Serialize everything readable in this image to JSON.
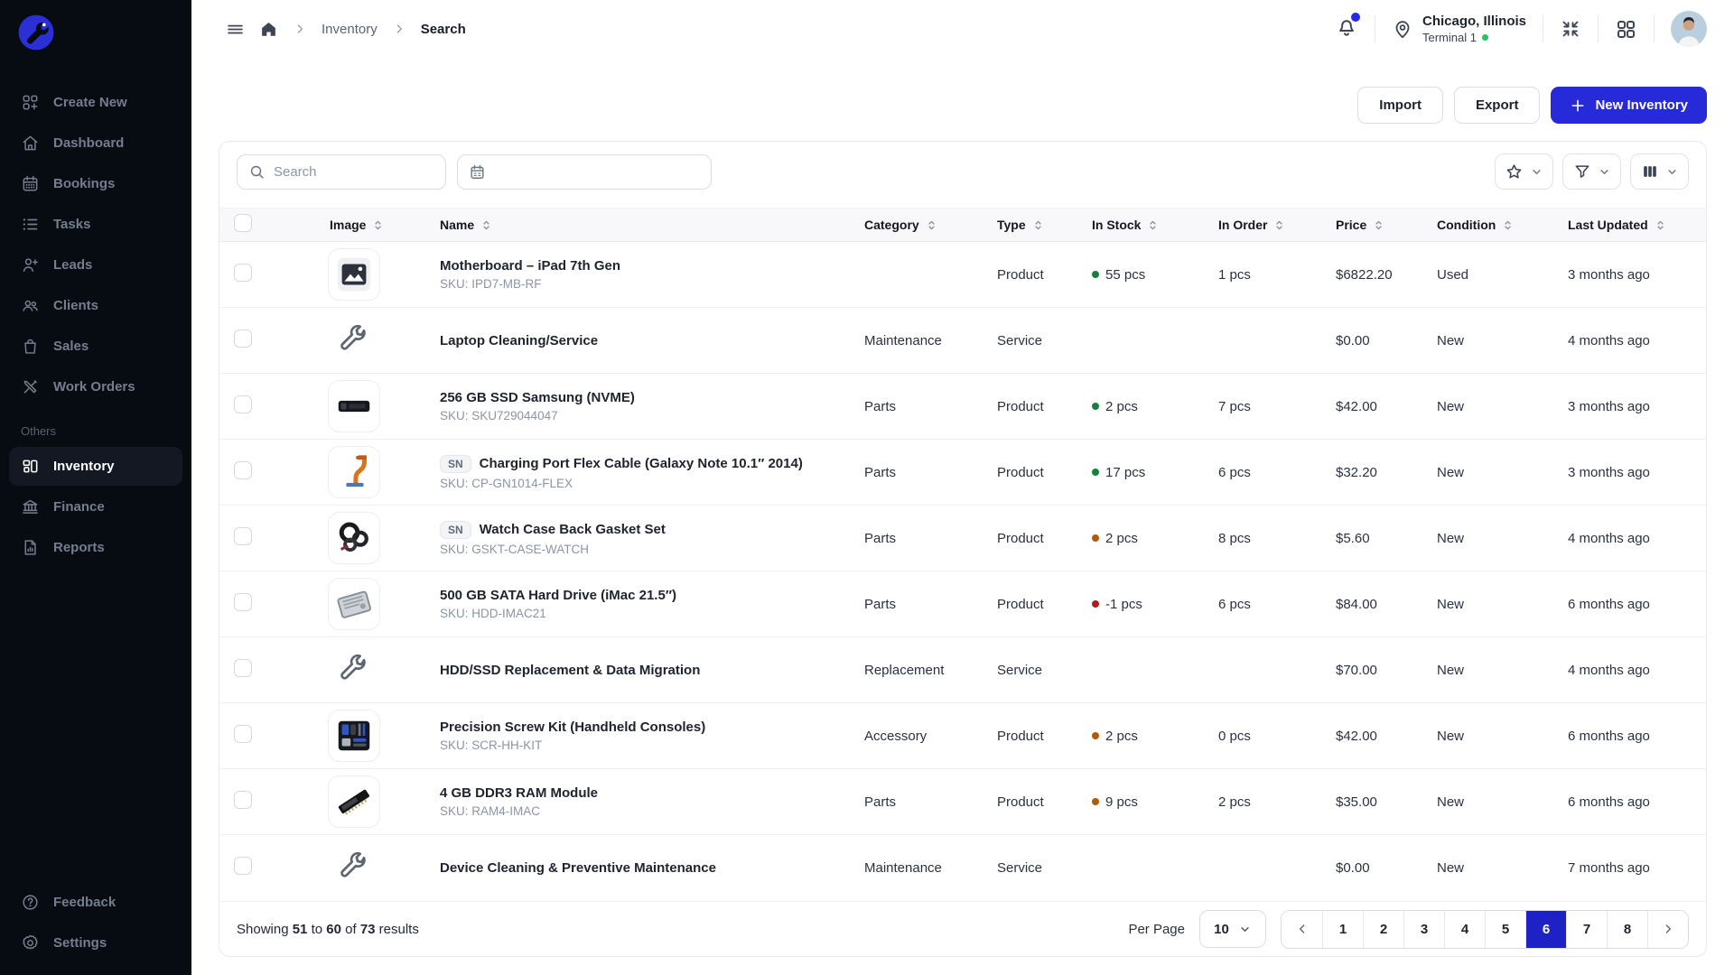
{
  "sidebar": {
    "items": [
      {
        "label": "Create New",
        "icon": "create-new",
        "active": false
      },
      {
        "label": "Dashboard",
        "icon": "dashboard",
        "active": false
      },
      {
        "label": "Bookings",
        "icon": "bookings",
        "active": false
      },
      {
        "label": "Tasks",
        "icon": "tasks",
        "active": false
      },
      {
        "label": "Leads",
        "icon": "leads",
        "active": false
      },
      {
        "label": "Clients",
        "icon": "clients",
        "active": false
      },
      {
        "label": "Sales",
        "icon": "sales",
        "active": false
      },
      {
        "label": "Work Orders",
        "icon": "workorders",
        "active": false
      }
    ],
    "others_label": "Others",
    "others_items": [
      {
        "label": "Inventory",
        "icon": "inventory",
        "active": true
      },
      {
        "label": "Finance",
        "icon": "finance",
        "active": false
      },
      {
        "label": "Reports",
        "icon": "reports",
        "active": false
      }
    ],
    "bottom_items": [
      {
        "label": "Feedback",
        "icon": "feedback",
        "active": false
      },
      {
        "label": "Settings",
        "icon": "settings",
        "active": false
      }
    ]
  },
  "topbar": {
    "breadcrumb": {
      "parent": "Inventory",
      "current": "Search"
    },
    "location": {
      "city": "Chicago, Illinois",
      "terminal": "Terminal 1"
    }
  },
  "actions": {
    "import": "Import",
    "export": "Export",
    "new_inventory": "New Inventory"
  },
  "toolbar": {
    "search_placeholder": "Search"
  },
  "table": {
    "sn_label": "SN",
    "headers": [
      "Image",
      "Name",
      "Category",
      "Type",
      "In Stock",
      "In Order",
      "Price",
      "Condition",
      "Last Updated"
    ],
    "rows": [
      {
        "thumb": "photo",
        "sn": false,
        "name": "Motherboard – iPad 7th Gen",
        "sku": "SKU: IPD7-MB-RF",
        "category": "",
        "type": "Product",
        "in_stock": "55 pcs",
        "stock_level": "green",
        "in_order": "1 pcs",
        "price": "$6822.20",
        "condition": "Used",
        "updated": "3 months ago"
      },
      {
        "thumb": "wrench",
        "sn": false,
        "name": "Laptop Cleaning/Service",
        "sku": "",
        "category": "Maintenance",
        "type": "Service",
        "in_stock": "",
        "stock_level": "",
        "in_order": "",
        "price": "$0.00",
        "condition": "New",
        "updated": "4 months ago"
      },
      {
        "thumb": "ssd",
        "sn": false,
        "name": "256 GB SSD Samsung (NVME)",
        "sku": "SKU: SKU729044047",
        "category": "Parts",
        "type": "Product",
        "in_stock": "2 pcs",
        "stock_level": "green",
        "in_order": "7 pcs",
        "price": "$42.00",
        "condition": "New",
        "updated": "3 months ago"
      },
      {
        "thumb": "cable",
        "sn": true,
        "name": "Charging Port Flex Cable (Galaxy Note 10.1″ 2014)",
        "sku": "SKU: CP-GN1014-FLEX",
        "category": "Parts",
        "type": "Product",
        "in_stock": "17 pcs",
        "stock_level": "green",
        "in_order": "6 pcs",
        "price": "$32.20",
        "condition": "New",
        "updated": "3 months ago"
      },
      {
        "thumb": "gasket",
        "sn": true,
        "name": "Watch Case Back Gasket Set",
        "sku": "SKU: GSKT-CASE-WATCH",
        "category": "Parts",
        "type": "Product",
        "in_stock": "2 pcs",
        "stock_level": "amber",
        "in_order": "8 pcs",
        "price": "$5.60",
        "condition": "New",
        "updated": "4 months ago"
      },
      {
        "thumb": "hdd",
        "sn": false,
        "name": "500 GB SATA Hard Drive (iMac 21.5″)",
        "sku": "SKU: HDD-IMAC21",
        "category": "Parts",
        "type": "Product",
        "in_stock": "-1 pcs",
        "stock_level": "red",
        "in_order": "6 pcs",
        "price": "$84.00",
        "condition": "New",
        "updated": "6 months ago"
      },
      {
        "thumb": "wrench",
        "sn": false,
        "name": "HDD/SSD Replacement & Data Migration",
        "sku": "",
        "category": "Replacement",
        "type": "Service",
        "in_stock": "",
        "stock_level": "",
        "in_order": "",
        "price": "$70.00",
        "condition": "New",
        "updated": "4 months ago"
      },
      {
        "thumb": "screwkit",
        "sn": false,
        "name": "Precision Screw Kit (Handheld Consoles)",
        "sku": "SKU: SCR-HH-KIT",
        "category": "Accessory",
        "type": "Product",
        "in_stock": "2 pcs",
        "stock_level": "amber",
        "in_order": "0 pcs",
        "price": "$42.00",
        "condition": "New",
        "updated": "6 months ago"
      },
      {
        "thumb": "ram",
        "sn": false,
        "name": "4 GB DDR3 RAM Module",
        "sku": "SKU: RAM4-IMAC",
        "category": "Parts",
        "type": "Product",
        "in_stock": "9 pcs",
        "stock_level": "amber",
        "in_order": "2 pcs",
        "price": "$35.00",
        "condition": "New",
        "updated": "6 months ago"
      },
      {
        "thumb": "wrench",
        "sn": false,
        "name": "Device Cleaning & Preventive Maintenance",
        "sku": "",
        "category": "Maintenance",
        "type": "Service",
        "in_stock": "",
        "stock_level": "",
        "in_order": "",
        "price": "$0.00",
        "condition": "New",
        "updated": "7 months ago"
      }
    ]
  },
  "footer": {
    "showing_prefix": "Showing",
    "from": "51",
    "to_word": "to",
    "to": "60",
    "of_word": "of",
    "total": "73",
    "results_word": "results",
    "per_page_label": "Per Page",
    "per_page": "10",
    "pages": [
      "1",
      "2",
      "3",
      "4",
      "5",
      "6",
      "7",
      "8"
    ],
    "active_page": "6"
  },
  "colors": {
    "accent": "#272ad8",
    "accent_dark": "#1e22c4",
    "stock_green": "#17803d",
    "stock_amber": "#b35a09",
    "stock_red": "#b31b1b",
    "terminal_dot": "#22c55e",
    "notification_dot": "#2428e8",
    "sidebar_bg": "#070b12"
  }
}
